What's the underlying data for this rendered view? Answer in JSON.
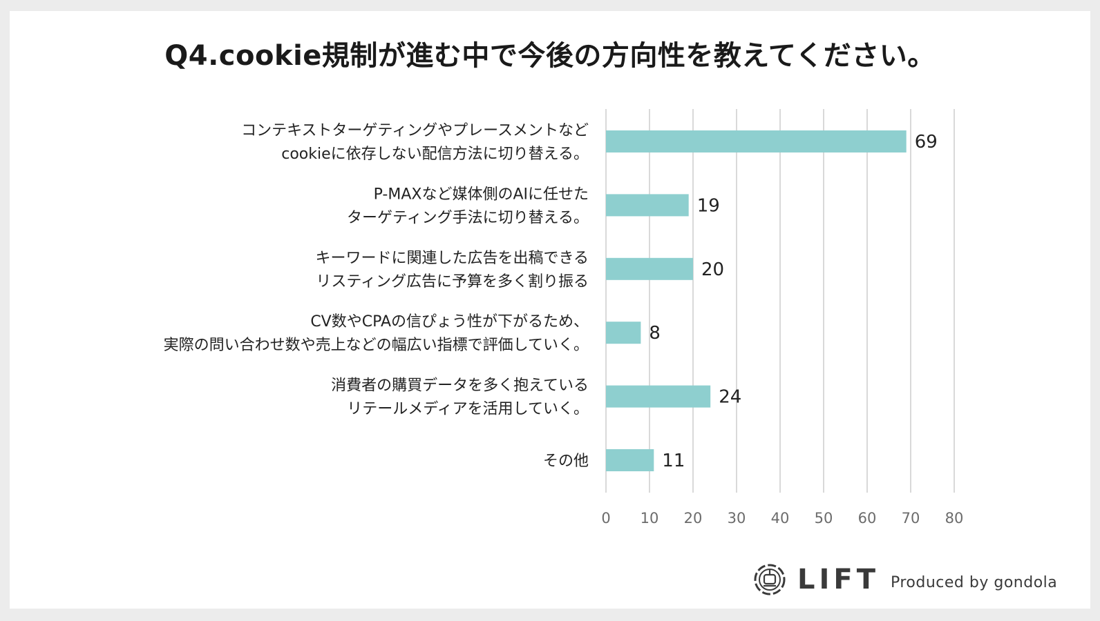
{
  "title": "Q4.cookie規制が進む中で今後の方向性を教えてください。",
  "brand": {
    "logo_icon": "gondola-icon",
    "name": "LIFT",
    "credit": "Produced by gondola"
  },
  "colors": {
    "bar": "#8ecfcf",
    "grid": "#d9d9d9",
    "label_text": "#222222",
    "tick_text": "#6b6b6b"
  },
  "chart_data": {
    "type": "bar",
    "orientation": "horizontal",
    "categories": [
      [
        "コンテキストターゲティングやプレースメントなど",
        "cookieに依存しない配信方法に切り替える。"
      ],
      [
        "P-MAXなど媒体側のAIに任せた",
        "ターゲティング手法に切り替える。"
      ],
      [
        "キーワードに関連した広告を出稿できる",
        "リスティング広告に予算を多く割り振る"
      ],
      [
        "CV数やCPAの信ぴょう性が下がるため、",
        "実際の問い合わせ数や売上などの幅広い指標で評価していく。"
      ],
      [
        "消費者の購買データを多く抱えている",
        "リテールメディアを活用していく。"
      ],
      [
        "その他"
      ]
    ],
    "values": [
      69,
      19,
      20,
      8,
      24,
      11
    ],
    "xlim": [
      0,
      80
    ],
    "xticks": [
      0,
      10,
      20,
      30,
      40,
      50,
      60,
      70,
      80
    ],
    "grid": true,
    "data_labels": true
  }
}
